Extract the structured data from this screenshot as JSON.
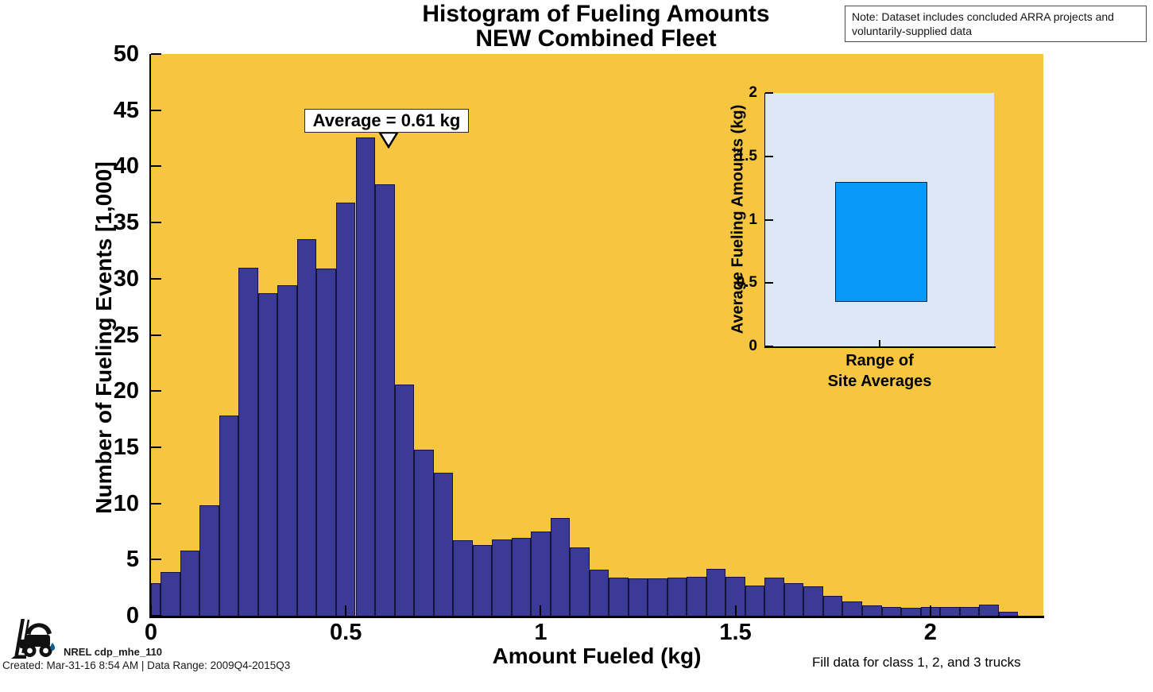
{
  "title": {
    "line1": "Histogram of Fueling Amounts",
    "line2": "NEW Combined Fleet"
  },
  "note_box": {
    "text": "Note: Dataset includes concluded ARRA projects and voluntarily-supplied data"
  },
  "annotation": {
    "label": "Average = 0.61 kg"
  },
  "footer": {
    "logo_label": "NREL cdp_mhe_110",
    "created_line": "Created: Mar-31-16  8:54 AM | Data Range: 2009Q4-2015Q3",
    "fill_note": "Fill data for class 1, 2, and 3 trucks"
  },
  "colors": {
    "plot_background": "#F6C640",
    "bar_fill": "#3B3A96",
    "bar_edge": "#14143C",
    "inset_background": "#DCE8F8",
    "inset_box_fill": "#0997F8",
    "axis": "#000000"
  },
  "chart_data": [
    {
      "type": "bar",
      "name": "fueling-amount-histogram",
      "title": "Histogram of Fueling Amounts NEW Combined Fleet",
      "xlabel": "Amount Fueled (kg)",
      "ylabel": "Number of Fueling Events [1,000]",
      "xlim": [
        0,
        2.29
      ],
      "ylim": [
        0,
        50
      ],
      "grid": false,
      "x_ticks": [
        0,
        0.5,
        1,
        1.5,
        2
      ],
      "x_tick_labels": [
        "0",
        "0.5",
        "1",
        "1.5",
        "2"
      ],
      "y_ticks": [
        0,
        5,
        10,
        15,
        20,
        25,
        30,
        35,
        40,
        45,
        50
      ],
      "bin_width_kg": 0.05,
      "average_kg": 0.61,
      "bin_centers_kg": [
        0.0,
        0.05,
        0.1,
        0.15,
        0.2,
        0.25,
        0.3,
        0.35,
        0.4,
        0.45,
        0.5,
        0.55,
        0.6,
        0.65,
        0.7,
        0.75,
        0.8,
        0.85,
        0.9,
        0.95,
        1.0,
        1.05,
        1.1,
        1.15,
        1.2,
        1.25,
        1.3,
        1.35,
        1.4,
        1.45,
        1.5,
        1.55,
        1.6,
        1.65,
        1.7,
        1.75,
        1.8,
        1.85,
        1.9,
        1.95,
        2.0,
        2.05,
        2.1,
        2.15,
        2.2
      ],
      "counts_thousands": [
        2.9,
        3.9,
        5.8,
        9.8,
        17.8,
        31,
        28.7,
        29.4,
        33.5,
        30.9,
        36.8,
        42.6,
        38.4,
        20.6,
        14.8,
        12.7,
        6.7,
        6.3,
        6.8,
        6.9,
        7.5,
        8.7,
        6.1,
        4.1,
        3.4,
        3.3,
        3.3,
        3.4,
        3.5,
        4.2,
        3.5,
        2.7,
        3.4,
        2.9,
        2.6,
        1.8,
        1.25,
        0.9,
        0.8,
        0.7,
        0.8,
        0.8,
        0.75,
        1.0,
        0.35
      ]
    },
    {
      "type": "bar",
      "name": "range-of-site-averages",
      "ylabel": "Average Fueling Amounts (kg)",
      "xlabel_line1": "Range of",
      "xlabel_line2": "Site Averages",
      "ylim": [
        0,
        2
      ],
      "y_ticks": [
        0,
        0.5,
        1,
        1.5,
        2
      ],
      "y_tick_labels": [
        "0",
        "0.5",
        "1",
        "1.5",
        "2"
      ],
      "range_min_kg": 0.35,
      "range_max_kg": 1.3
    }
  ]
}
